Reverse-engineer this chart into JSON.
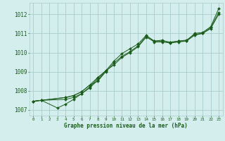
{
  "xlabel": "Graphe pression niveau de la mer (hPa)",
  "bg_color": "#d4eeee",
  "grid_color": "#aacccc",
  "line_color": "#1a5c1a",
  "text_color": "#1a5c1a",
  "xlim": [
    -0.5,
    23.5
  ],
  "ylim": [
    1006.7,
    1012.6
  ],
  "yticks": [
    1007,
    1008,
    1009,
    1010,
    1011,
    1012
  ],
  "xticks": [
    0,
    1,
    2,
    3,
    4,
    5,
    6,
    7,
    8,
    9,
    10,
    11,
    12,
    13,
    14,
    15,
    16,
    17,
    18,
    19,
    20,
    21,
    22,
    23
  ],
  "series": [
    {
      "x": [
        0,
        1,
        4,
        5,
        6,
        7,
        8,
        9,
        10,
        11,
        12,
        13,
        14,
        15,
        16,
        17,
        18,
        19,
        20,
        21,
        22,
        23
      ],
      "y": [
        1007.45,
        1007.5,
        1007.55,
        1007.65,
        1007.85,
        1008.15,
        1008.55,
        1009.05,
        1009.55,
        1009.95,
        1010.2,
        1010.45,
        1010.9,
        1010.6,
        1010.65,
        1010.5,
        1010.6,
        1010.6,
        1011.0,
        1011.05,
        1011.35,
        1012.3
      ]
    },
    {
      "x": [
        0,
        1,
        3,
        4,
        5,
        6,
        7,
        8,
        9
      ],
      "y": [
        1007.45,
        1007.5,
        1007.1,
        1007.3,
        1007.55,
        1007.85,
        1008.2,
        1008.65,
        1009.05
      ]
    },
    {
      "x": [
        0,
        1,
        4,
        5,
        6,
        7,
        8,
        9,
        10,
        11,
        12,
        13,
        14,
        15,
        16,
        17,
        18,
        19,
        20,
        21,
        22,
        23
      ],
      "y": [
        1007.45,
        1007.5,
        1007.65,
        1007.75,
        1007.95,
        1008.3,
        1008.7,
        1009.05,
        1009.35,
        1009.75,
        1010.0,
        1010.3,
        1010.8,
        1010.6,
        1010.6,
        1010.55,
        1010.6,
        1010.65,
        1010.95,
        1011.0,
        1011.3,
        1012.1
      ]
    },
    {
      "x": [
        0,
        1,
        4,
        5,
        6,
        7,
        8,
        9,
        10,
        11,
        12,
        13,
        14,
        15,
        16,
        17,
        18,
        19,
        20,
        21,
        22,
        23
      ],
      "y": [
        1007.45,
        1007.5,
        1007.65,
        1007.75,
        1007.95,
        1008.3,
        1008.5,
        1009.0,
        1009.45,
        1009.8,
        1010.05,
        1010.35,
        1010.85,
        1010.55,
        1010.55,
        1010.5,
        1010.55,
        1010.6,
        1010.9,
        1011.0,
        1011.25,
        1012.0
      ]
    }
  ]
}
